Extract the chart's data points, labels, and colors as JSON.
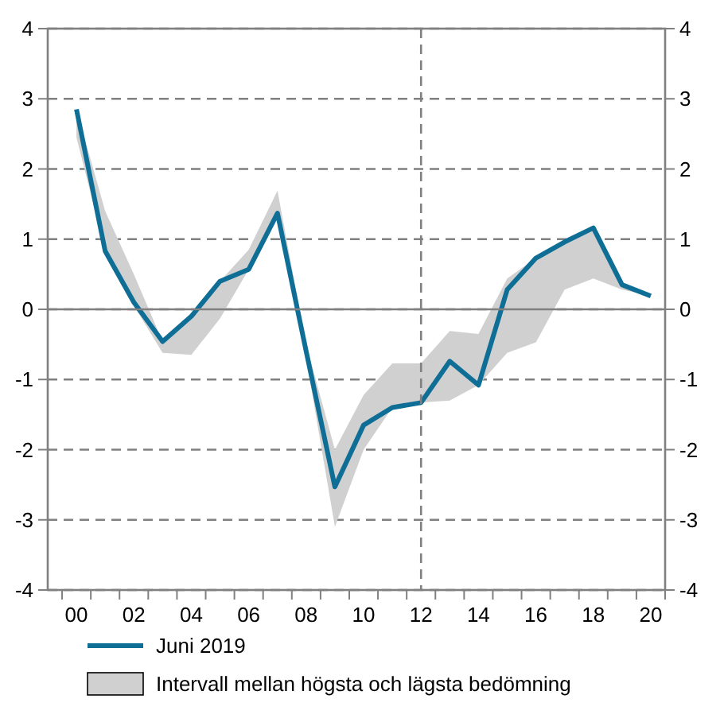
{
  "chart_data": {
    "type": "line",
    "x": [
      2000,
      2001,
      2002,
      2003,
      2004,
      2005,
      2006,
      2007,
      2008,
      2009,
      2010,
      2011,
      2012,
      2013,
      2014,
      2015,
      2016,
      2017,
      2018,
      2019,
      2020
    ],
    "series": [
      {
        "name": "Juni 2019",
        "color": "#0f6e96",
        "values": [
          2.85,
          0.83,
          0.1,
          -0.46,
          -0.1,
          0.4,
          0.57,
          1.37,
          -0.6,
          -2.53,
          -1.65,
          -1.4,
          -1.33,
          -0.74,
          -1.08,
          0.28,
          0.73,
          0.96,
          1.16,
          0.35,
          0.19
        ],
        "lower": [
          2.45,
          0.83,
          0.05,
          -0.62,
          -0.65,
          -0.13,
          0.57,
          1.37,
          -0.7,
          -3.1,
          -2.0,
          -1.4,
          -1.33,
          -1.3,
          -1.08,
          -0.62,
          -0.47,
          0.28,
          0.44,
          0.28,
          0.19
        ],
        "upper": [
          2.85,
          1.4,
          0.5,
          -0.46,
          -0.1,
          0.4,
          0.85,
          1.69,
          -0.5,
          -2.0,
          -1.22,
          -0.77,
          -0.77,
          -0.31,
          -0.35,
          0.44,
          0.73,
          0.96,
          1.16,
          0.35,
          0.19
        ]
      }
    ],
    "annotations": [
      "Intervall mellan högsta och lägsta bedömning"
    ],
    "xlim": [
      1999,
      2020.5
    ],
    "xticks": [
      {
        "value": 1999.5,
        "label": null
      },
      {
        "value": 2000,
        "label": "00"
      },
      {
        "value": 2000.5,
        "label": null
      },
      {
        "value": 2001.5,
        "label": null
      },
      {
        "value": 2002,
        "label": "02"
      },
      {
        "value": 2002.5,
        "label": null
      },
      {
        "value": 2003.5,
        "label": null
      },
      {
        "value": 2004,
        "label": "04"
      },
      {
        "value": 2004.5,
        "label": null
      },
      {
        "value": 2005.5,
        "label": null
      },
      {
        "value": 2006,
        "label": "06"
      },
      {
        "value": 2006.5,
        "label": null
      },
      {
        "value": 2007.5,
        "label": null
      },
      {
        "value": 2008,
        "label": "08"
      },
      {
        "value": 2008.5,
        "label": null
      },
      {
        "value": 2009.5,
        "label": null
      },
      {
        "value": 2010,
        "label": "10"
      },
      {
        "value": 2010.5,
        "label": null
      },
      {
        "value": 2011.5,
        "label": null
      },
      {
        "value": 2012,
        "label": "12"
      },
      {
        "value": 2012.5,
        "label": null
      },
      {
        "value": 2013.5,
        "label": null
      },
      {
        "value": 2014,
        "label": "14"
      },
      {
        "value": 2014.5,
        "label": null
      },
      {
        "value": 2015.5,
        "label": null
      },
      {
        "value": 2016,
        "label": "16"
      },
      {
        "value": 2016.5,
        "label": null
      },
      {
        "value": 2017.5,
        "label": null
      },
      {
        "value": 2018,
        "label": "18"
      },
      {
        "value": 2018.5,
        "label": null
      },
      {
        "value": 2019.5,
        "label": null
      },
      {
        "value": 2020,
        "label": "20"
      },
      {
        "value": 2020.5,
        "label": null
      }
    ],
    "ylim": [
      -4,
      4
    ],
    "yticks": [
      -4,
      -3,
      -2,
      -1,
      0,
      1,
      2,
      3,
      4
    ],
    "y2lim": [
      -4,
      4
    ],
    "y2ticks": [
      -4,
      -3,
      -2,
      -1,
      0,
      1,
      2,
      3,
      4
    ],
    "grid": "y",
    "line_style": "solid",
    "marker": "none",
    "legend": "bottom",
    "ref_lines": [
      {
        "axis": "x",
        "value": 2012,
        "line_style": "dashed",
        "color": "#808080"
      },
      {
        "axis": "y",
        "value": 0,
        "line_style": "solid",
        "color": "#808080"
      }
    ]
  }
}
